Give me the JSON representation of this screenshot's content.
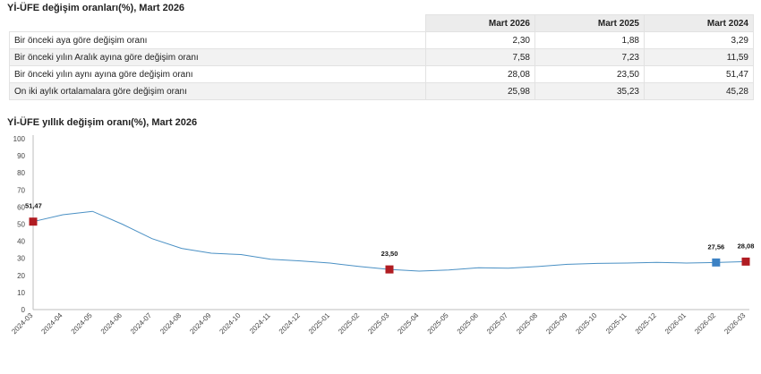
{
  "table_title": "Yİ-ÜFE değişim oranları(%), Mart 2026",
  "table": {
    "headers": [
      "",
      "Mart 2026",
      "Mart 2025",
      "Mart 2024"
    ],
    "rows": [
      [
        "Bir önceki aya göre değişim oranı",
        "2,30",
        "1,88",
        "3,29"
      ],
      [
        "Bir önceki yılın Aralık ayına göre değişim oranı",
        "7,58",
        "7,23",
        "11,59"
      ],
      [
        "Bir önceki yılın aynı ayına göre değişim oranı",
        "28,08",
        "23,50",
        "51,47"
      ],
      [
        "On iki aylık ortalamalara göre değişim oranı",
        "25,98",
        "35,23",
        "45,28"
      ]
    ]
  },
  "chart_title": "Yİ-ÜFE yıllık değişim oranı(%), Mart 2026",
  "chart_data": {
    "type": "line",
    "title": "Yİ-ÜFE yıllık değişim oranı(%), Mart 2026",
    "xlabel": "",
    "ylabel": "",
    "ylim": [
      0,
      100
    ],
    "yticks": [
      0,
      10,
      20,
      30,
      40,
      50,
      60,
      70,
      80,
      90,
      100
    ],
    "grid": false,
    "categories": [
      "2024-03",
      "2024-04",
      "2024-05",
      "2024-06",
      "2024-07",
      "2024-08",
      "2024-09",
      "2024-10",
      "2024-11",
      "2024-12",
      "2025-01",
      "2025-02",
      "2025-03",
      "2025-04",
      "2025-05",
      "2025-06",
      "2025-07",
      "2025-08",
      "2025-09",
      "2025-10",
      "2025-11",
      "2025-12",
      "2026-01",
      "2026-02",
      "2026-03"
    ],
    "series": [
      {
        "values": [
          51.47,
          55.5,
          57.5,
          50.0,
          41.5,
          35.8,
          33.0,
          32.2,
          29.5,
          28.5,
          27.2,
          25.2,
          23.5,
          22.5,
          23.2,
          24.5,
          24.2,
          25.2,
          26.5,
          27.0,
          27.2,
          27.6,
          27.2,
          27.56,
          28.08
        ],
        "color": "#4a90c4"
      }
    ],
    "highlights": [
      {
        "index": 0,
        "label": "51,47",
        "color": "#b01c22"
      },
      {
        "index": 12,
        "label": "23,50",
        "color": "#b01c22"
      },
      {
        "index": 23,
        "label": "27,56",
        "color": "#3d82c4"
      },
      {
        "index": 24,
        "label": "28,08",
        "color": "#b01c22"
      }
    ]
  }
}
